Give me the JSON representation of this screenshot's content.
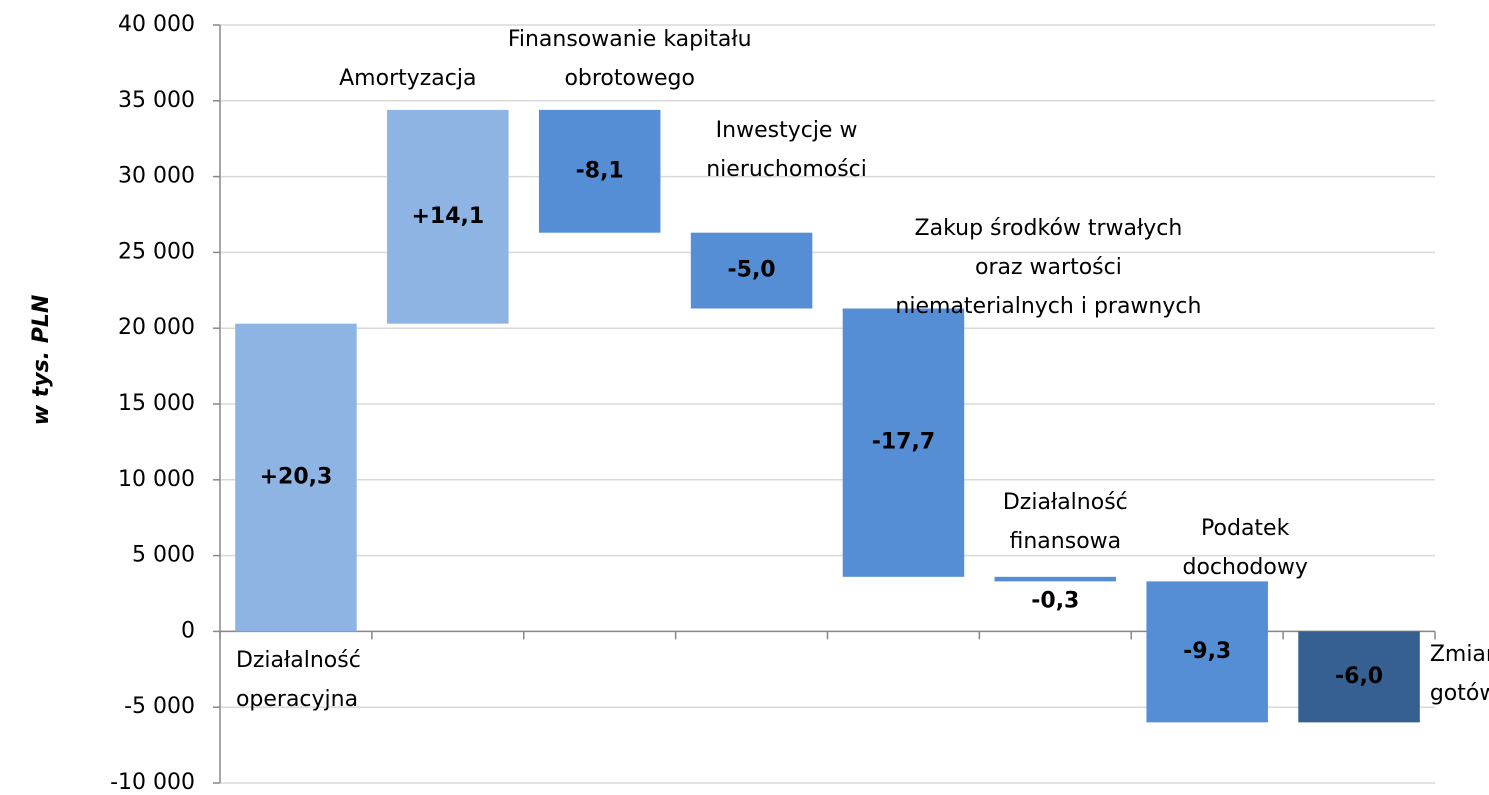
{
  "chart_data": {
    "type": "waterfall",
    "y_label": "w tys. PLN",
    "categories": [
      "Działalność operacyjna",
      "Amortyzacja",
      "Finansowanie kapitału obrotowego",
      "Inwestycje w nieruchomości",
      "Zakup środków trwałych oraz wartości niematerialnych i prawnych",
      "Działalność finansowa",
      "Podatek dochodowy",
      "Zmiana stanu gotówki"
    ],
    "values": [
      20300,
      14100,
      -8100,
      -5000,
      -17700,
      -300,
      -9300,
      -6000
    ],
    "value_labels": [
      "+20,3",
      "+14,1",
      "-8,1",
      "-5,0",
      "-17,7",
      "-0,3",
      "-9,3",
      "-6,0"
    ],
    "measure": [
      "relative",
      "relative",
      "relative",
      "relative",
      "relative",
      "relative",
      "relative",
      "total"
    ],
    "colors": [
      "#8db4e2",
      "#8db4e2",
      "#558ed5",
      "#558ed5",
      "#558ed5",
      "#558ed5",
      "#558ed5",
      "#366092"
    ],
    "ylim": [
      -10000,
      40000
    ],
    "yticks": [
      {
        "value": -10000,
        "label": "-10 000"
      },
      {
        "value": -5000,
        "label": "-5 000"
      },
      0,
      {
        "value": 5000,
        "label": "5 000"
      },
      {
        "value": 10000,
        "label": "10 000"
      },
      {
        "value": 15000,
        "label": "15 000"
      },
      {
        "value": 20000,
        "label": "20 000"
      },
      {
        "value": 25000,
        "label": "25 000"
      },
      {
        "value": 30000,
        "label": "30 000"
      },
      {
        "value": 35000,
        "label": "35 000"
      },
      {
        "value": 40000,
        "label": "40 000"
      }
    ],
    "grid": true
  }
}
